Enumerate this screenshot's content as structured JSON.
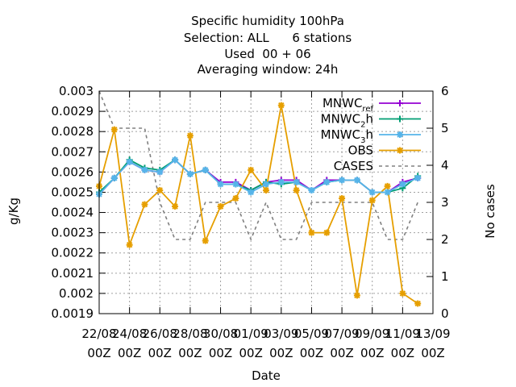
{
  "title_lines": [
    "Specific humidity 100hPa",
    "Selection: ALL      6 stations",
    "Used  00 + 06",
    "Averaging window: 24h"
  ],
  "chart_data": {
    "type": "line",
    "xlabel": "Date",
    "ylabel": "g/Kg",
    "y2label": "No cases",
    "x_ticks": [
      {
        "t": 0,
        "top": "22/08",
        "bottom": "00Z"
      },
      {
        "t": 2,
        "top": "24/08",
        "bottom": "00Z"
      },
      {
        "t": 4,
        "top": "26/08",
        "bottom": "00Z"
      },
      {
        "t": 6,
        "top": "28/08",
        "bottom": "00Z"
      },
      {
        "t": 8,
        "top": "30/08",
        "bottom": "00Z"
      },
      {
        "t": 10,
        "top": "01/09",
        "bottom": "00Z"
      },
      {
        "t": 12,
        "top": "03/09",
        "bottom": "00Z"
      },
      {
        "t": 14,
        "top": "05/09",
        "bottom": "00Z"
      },
      {
        "t": 16,
        "top": "07/09",
        "bottom": "00Z"
      },
      {
        "t": 18,
        "top": "09/09",
        "bottom": "00Z"
      },
      {
        "t": 20,
        "top": "11/09",
        "bottom": "00Z"
      },
      {
        "t": 22,
        "top": "13/09",
        "bottom": "00Z"
      }
    ],
    "xlim": [
      0,
      22
    ],
    "ylim": [
      0.0019,
      0.003
    ],
    "y_ticks": [
      "0.0019",
      "0.002",
      "0.0021",
      "0.0022",
      "0.0023",
      "0.0024",
      "0.0025",
      "0.0026",
      "0.0027",
      "0.0028",
      "0.0029",
      "0.003"
    ],
    "y2lim": [
      0,
      6
    ],
    "y2_ticks": [
      "0",
      "1",
      "2",
      "3",
      "4",
      "5",
      "6"
    ],
    "grid": true,
    "legend_position": "top-right",
    "x": [
      0,
      1,
      2,
      3,
      4,
      5,
      6,
      7,
      8,
      9,
      10,
      11,
      12,
      13,
      14,
      15,
      16,
      17,
      18,
      19,
      20,
      21
    ],
    "series": [
      {
        "name": "MNWC",
        "name_sub": "ref",
        "color": "#9400d3",
        "marker": "plus",
        "axis": "y",
        "values": [
          0.00249,
          0.00257,
          0.00265,
          0.00261,
          0.0026,
          0.00266,
          0.00259,
          0.00261,
          0.00255,
          0.00255,
          0.00251,
          0.00255,
          0.00256,
          0.00256,
          0.00251,
          0.00256,
          0.00256,
          0.00256,
          0.0025,
          0.0025,
          0.00255,
          0.00257
        ]
      },
      {
        "name": "MNWC",
        "name_sub": "2",
        "name_after": "h",
        "color": "#009e73",
        "marker": "plus",
        "axis": "y",
        "values": [
          0.0025,
          0.00257,
          0.00266,
          0.00262,
          0.00261,
          0.00266,
          0.00259,
          0.00261,
          0.00254,
          0.00254,
          0.00251,
          0.00255,
          0.00254,
          0.00255,
          0.00251,
          0.00255,
          0.00256,
          0.00256,
          0.0025,
          0.0025,
          0.00252,
          0.00258
        ]
      },
      {
        "name": "MNWC",
        "name_sub": "3",
        "name_after": "h",
        "color": "#56b4e9",
        "marker": "star",
        "axis": "y",
        "values": [
          0.00249,
          0.00257,
          0.00265,
          0.00261,
          0.0026,
          0.00266,
          0.00259,
          0.00261,
          0.00254,
          0.00254,
          0.0025,
          0.00254,
          0.00255,
          0.00255,
          0.00251,
          0.00255,
          0.00256,
          0.00256,
          0.0025,
          0.0025,
          0.00254,
          0.00257
        ]
      },
      {
        "name": "OBS",
        "color": "#e69f00",
        "marker": "star",
        "axis": "y",
        "values": [
          0.00253,
          0.00281,
          0.00224,
          0.00244,
          0.00251,
          0.00243,
          0.00278,
          0.00226,
          0.00243,
          0.00247,
          0.00261,
          0.00251,
          0.00293,
          0.00251,
          0.0023,
          0.0023,
          0.00247,
          0.00199,
          0.00246,
          0.00253,
          0.002,
          0.00195
        ]
      },
      {
        "name": "CASES",
        "color": "#808080",
        "marker": "none",
        "dashed": true,
        "axis": "y2",
        "values": [
          6,
          5,
          5,
          5,
          3,
          2,
          2,
          3,
          3,
          3,
          2,
          3,
          2,
          2,
          3,
          3,
          3,
          3,
          3,
          2,
          2,
          3
        ]
      }
    ]
  }
}
